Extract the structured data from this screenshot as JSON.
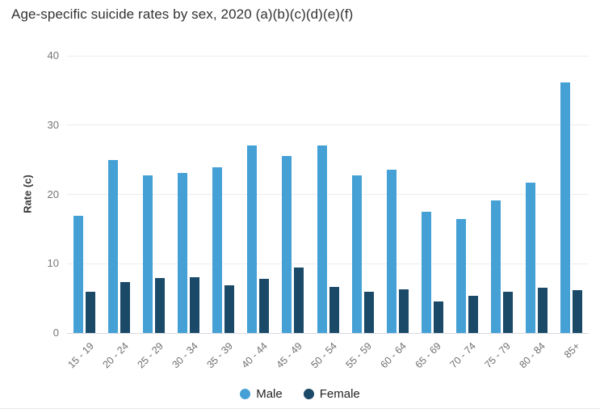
{
  "title": "Age-specific suicide rates by sex, 2020 (a)(b)(c)(d)(e)(f)",
  "chart_data": {
    "type": "bar",
    "title": "Age-specific suicide rates by sex, 2020 (a)(b)(c)(d)(e)(f)",
    "xlabel": "",
    "ylabel": "Rate (c)",
    "ylim": [
      0,
      40
    ],
    "yticks": [
      0,
      10,
      20,
      30,
      40
    ],
    "grid": true,
    "legend_position": "bottom",
    "categories": [
      "15 - 19",
      "20 - 24",
      "25 - 29",
      "30 - 34",
      "35 - 39",
      "40 - 44",
      "45 - 49",
      "50 - 54",
      "55 - 59",
      "60 - 64",
      "65 - 69",
      "70 - 74",
      "75 - 79",
      "80 - 84",
      "85+"
    ],
    "series": [
      {
        "name": "Male",
        "color": "#45a1d5",
        "values": [
          16.9,
          25.0,
          22.8,
          23.1,
          23.9,
          27.1,
          25.5,
          27.0,
          22.8,
          23.6,
          17.5,
          16.4,
          19.1,
          21.7,
          36.2
        ]
      },
      {
        "name": "Female",
        "color": "#1a4a68",
        "values": [
          6.0,
          7.3,
          7.9,
          8.1,
          6.9,
          7.8,
          9.5,
          6.6,
          5.9,
          6.3,
          4.5,
          5.4,
          5.9,
          6.5,
          6.2
        ]
      }
    ]
  },
  "colors": {
    "male": "#45a1d5",
    "female": "#1a4a68",
    "gridline": "#ededed",
    "baseline": "#d6dae3",
    "tick_text": "#757575",
    "title_text": "#323232"
  }
}
